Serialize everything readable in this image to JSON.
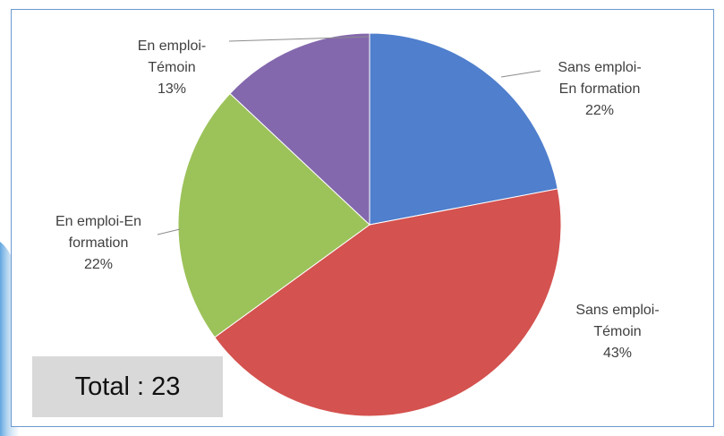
{
  "chart_data": {
    "type": "pie",
    "categories": [
      "Sans emploi-En formation",
      "Sans emploi-Témoin",
      "En emploi-En formation",
      "En emploi-Témoin"
    ],
    "values": [
      22,
      43,
      22,
      13
    ],
    "value_labels": [
      "22%",
      "43%",
      "22%",
      "13%"
    ],
    "colors": [
      "#4f7fcd",
      "#d4524f",
      "#9cc25a",
      "#8468ad"
    ],
    "annotation": "Total : 23"
  }
}
